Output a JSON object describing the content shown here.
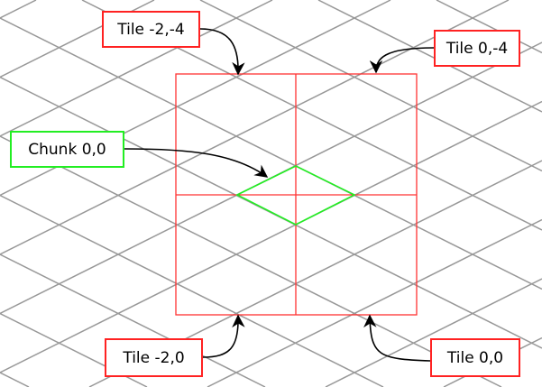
{
  "colors": {
    "grid": "#999999",
    "tile": "#ff3333",
    "chunk": "#22ee22",
    "arrow": "#000000"
  },
  "labels": {
    "tile_m2_m4": "Tile -2,-4",
    "tile_0_m4": "Tile 0,-4",
    "chunk_0_0": "Chunk 0,0",
    "tile_m2_0": "Tile -2,0",
    "tile_0_0": "Tile 0,0"
  }
}
